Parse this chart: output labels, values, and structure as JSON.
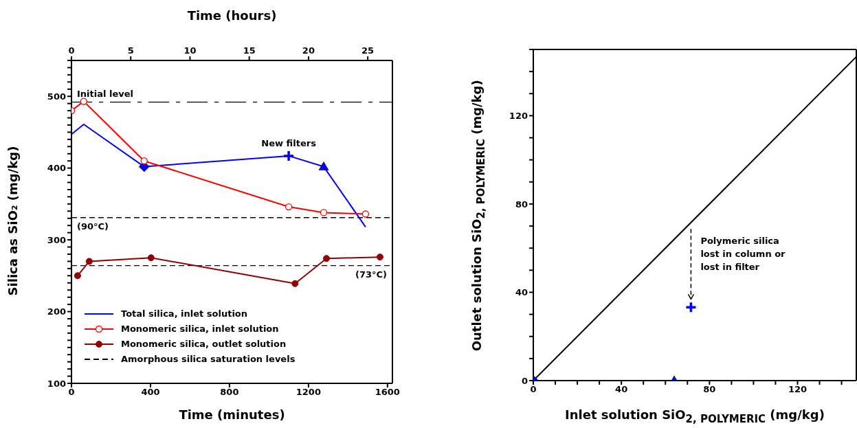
{
  "chart_data": [
    {
      "type": "line",
      "x2label": "Time (hours)",
      "xlabel": "Time (minutes)",
      "ylabel": "Silica as SiO₂ (mg/kg)",
      "xlim": [
        0,
        1625
      ],
      "xticks": [
        0,
        400,
        800,
        1200,
        1600
      ],
      "x2lim": [
        0,
        27.08
      ],
      "x2ticks": [
        0,
        5,
        10,
        15,
        20,
        25
      ],
      "ylim": [
        100,
        550
      ],
      "yticks": [
        100,
        {
          "value": 110,
          "label": null
        },
        {
          "value": 120,
          "label": null
        },
        {
          "value": 130,
          "label": null
        },
        {
          "value": 140,
          "label": null
        },
        {
          "value": 150,
          "label": null
        },
        {
          "value": 160,
          "label": null
        },
        {
          "value": 170,
          "label": null
        },
        {
          "value": 180,
          "label": null
        },
        {
          "value": 190,
          "label": null
        },
        200,
        {
          "value": 210,
          "label": null
        },
        {
          "value": 220,
          "label": null
        },
        {
          "value": 230,
          "label": null
        },
        {
          "value": 240,
          "label": null
        },
        {
          "value": 250,
          "label": null
        },
        {
          "value": 260,
          "label": null
        },
        {
          "value": 270,
          "label": null
        },
        {
          "value": 280,
          "label": null
        },
        {
          "value": 290,
          "label": null
        },
        300,
        {
          "value": 310,
          "label": null
        },
        {
          "value": 320,
          "label": null
        },
        {
          "value": 330,
          "label": null
        },
        {
          "value": 340,
          "label": null
        },
        {
          "value": 350,
          "label": null
        },
        {
          "value": 360,
          "label": null
        },
        {
          "value": 370,
          "label": null
        },
        {
          "value": 380,
          "label": null
        },
        {
          "value": 390,
          "label": null
        },
        400,
        {
          "value": 410,
          "label": null
        },
        {
          "value": 420,
          "label": null
        },
        {
          "value": 430,
          "label": null
        },
        {
          "value": 440,
          "label": null
        },
        {
          "value": 450,
          "label": null
        },
        {
          "value": 460,
          "label": null
        },
        {
          "value": 470,
          "label": null
        },
        {
          "value": 480,
          "label": null
        },
        {
          "value": 490,
          "label": null
        },
        500,
        {
          "value": 510,
          "label": null
        },
        {
          "value": 520,
          "label": null
        },
        {
          "value": 530,
          "label": null
        },
        {
          "value": 540,
          "label": null
        },
        {
          "value": 550,
          "label": null
        }
      ],
      "legend": "bottom left",
      "series": [
        {
          "name": "Total silica, inlet solution",
          "color": "#0000ff",
          "x": [
            0,
            62,
            368,
            1100,
            1277,
            1489
          ],
          "values": [
            447,
            461,
            402,
            417,
            402,
            318
          ],
          "marker": "none"
        },
        {
          "name": "Monomeric silica, inlet solution",
          "color": "#ff0000",
          "x": [
            0,
            62,
            368,
            1100,
            1277,
            1489
          ],
          "values": [
            480,
            493,
            410,
            346,
            338,
            336
          ],
          "marker": "circle-open"
        },
        {
          "name": "Monomeric silica, outlet solution",
          "color": "#900000",
          "x": [
            31,
            90,
            403,
            1132,
            1291,
            1562
          ],
          "values": [
            250,
            270,
            275,
            239,
            274,
            276
          ],
          "marker": "circle"
        },
        {
          "type": "scatter",
          "color": "#0000ff",
          "x": [
            368
          ],
          "values": [
            402
          ],
          "marker": "diamond"
        },
        {
          "type": "scatter",
          "color": "#0000ff",
          "x": [
            1100
          ],
          "values": [
            417
          ],
          "marker": "cross"
        },
        {
          "type": "scatter",
          "color": "#0000ff",
          "x": [
            1277
          ],
          "values": [
            402
          ],
          "marker": "triangle"
        }
      ],
      "ref_lines": [
        {
          "axis": "y",
          "value": 492,
          "label": "Initial level",
          "line_style": "dashdot",
          "color": "#000000"
        },
        {
          "axis": "y",
          "value": 331,
          "label": "(90°C)",
          "line_style": "dashed",
          "color": "#000000"
        },
        {
          "axis": "y",
          "value": 264,
          "label": "(73°C)",
          "line_style": "dashed",
          "color": "#000000"
        }
      ],
      "annotations": [
        "Amorphous silica saturation levels",
        {
          "text": "New filters",
          "x": 1100,
          "y": 417
        }
      ]
    },
    {
      "type": "scatter",
      "xlabel": "Inlet solution SiO$_{2, POLYMERIC}$ (mg/kg)",
      "ylabel": "Outlet solution SiO$_{2, POLYMERIC}$ (mg/kg)",
      "xlim": [
        0,
        146.7
      ],
      "ylim": [
        0,
        150
      ],
      "xticks": [
        0,
        {
          "value": 10,
          "label": null
        },
        {
          "value": 20,
          "label": null
        },
        {
          "value": 30,
          "label": null
        },
        40,
        {
          "value": 50,
          "label": null
        },
        {
          "value": 60,
          "label": null
        },
        {
          "value": 70,
          "label": null
        },
        80,
        {
          "value": 90,
          "label": null
        },
        {
          "value": 100,
          "label": null
        },
        {
          "value": 110,
          "label": null
        },
        120,
        {
          "value": 130,
          "label": null
        },
        {
          "value": 140,
          "label": null
        }
      ],
      "yticks": [
        0,
        {
          "value": 10,
          "label": null
        },
        {
          "value": 20,
          "label": null
        },
        {
          "value": 30,
          "label": null
        },
        40,
        {
          "value": 50,
          "label": null
        },
        {
          "value": 60,
          "label": null
        },
        {
          "value": 70,
          "label": null
        },
        80,
        {
          "value": 90,
          "label": null
        },
        {
          "value": 100,
          "label": null
        },
        {
          "value": 110,
          "label": null
        },
        120,
        {
          "value": 130,
          "label": null
        },
        {
          "value": 140,
          "label": null
        },
        {
          "value": 150,
          "label": null
        }
      ],
      "series": [
        {
          "type": "line",
          "color": "#000000",
          "x": [
            0,
            146.7
          ],
          "values": [
            0,
            146.7
          ],
          "marker": "none"
        },
        {
          "color": "#0000ff",
          "x": [
            0
          ],
          "values": [
            0
          ],
          "marker": "diamond"
        },
        {
          "color": "#0000ff",
          "x": [
            64
          ],
          "values": [
            0
          ],
          "marker": "triangle"
        },
        {
          "color": "#0000ff",
          "x": [
            71.6
          ],
          "values": [
            33.2
          ],
          "marker": "cross"
        }
      ],
      "annotations": [
        {
          "text": "Polymeric silica\nlost in column or\nlost in filter",
          "x": 71.6,
          "y": 70.6
        }
      ]
    }
  ]
}
